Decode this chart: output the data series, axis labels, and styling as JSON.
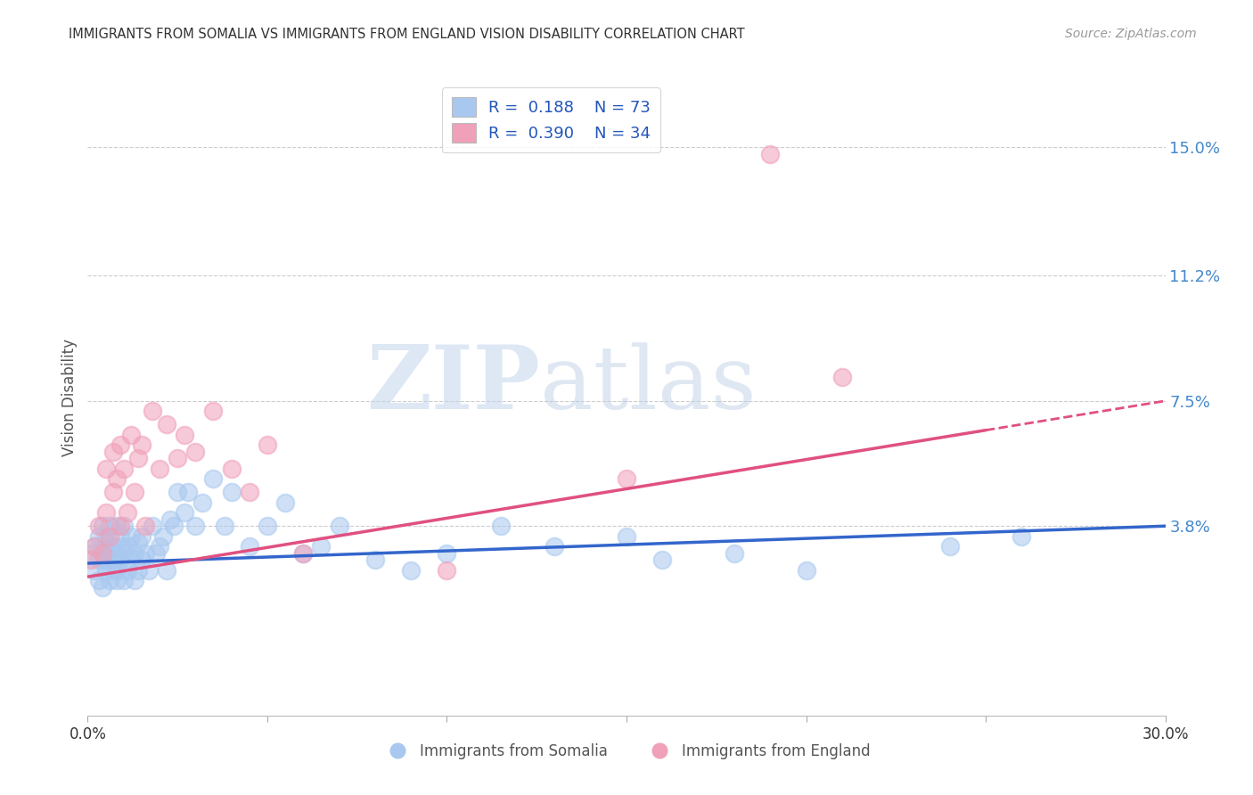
{
  "title": "IMMIGRANTS FROM SOMALIA VS IMMIGRANTS FROM ENGLAND VISION DISABILITY CORRELATION CHART",
  "source": "Source: ZipAtlas.com",
  "ylabel": "Vision Disability",
  "xlim": [
    0.0,
    0.3
  ],
  "ylim": [
    -0.018,
    0.17
  ],
  "yticks": [
    0.038,
    0.075,
    0.112,
    0.15
  ],
  "ytick_labels": [
    "3.8%",
    "7.5%",
    "11.2%",
    "15.0%"
  ],
  "xticks": [
    0.0,
    0.05,
    0.1,
    0.15,
    0.2,
    0.25,
    0.3
  ],
  "xtick_labels": [
    "0.0%",
    "",
    "",
    "",
    "",
    "",
    "30.0%"
  ],
  "background_color": "#ffffff",
  "watermark_text": "ZIP",
  "watermark_text2": "atlas",
  "legend_r1": "R =  0.188",
  "legend_n1": "N = 73",
  "legend_r2": "R =  0.390",
  "legend_n2": "N = 34",
  "somalia_color": "#a8c8f0",
  "england_color": "#f0a0b8",
  "somalia_line_color": "#3366cc",
  "england_line_color": "#e05080",
  "somalia_line_start": 0.027,
  "somalia_line_end": 0.038,
  "england_line_start": 0.023,
  "england_line_end": 0.075,
  "somalia_x": [
    0.001,
    0.002,
    0.002,
    0.003,
    0.003,
    0.003,
    0.004,
    0.004,
    0.004,
    0.005,
    0.005,
    0.005,
    0.005,
    0.006,
    0.006,
    0.006,
    0.007,
    0.007,
    0.007,
    0.008,
    0.008,
    0.008,
    0.008,
    0.009,
    0.009,
    0.009,
    0.01,
    0.01,
    0.01,
    0.011,
    0.011,
    0.012,
    0.012,
    0.013,
    0.013,
    0.014,
    0.014,
    0.015,
    0.015,
    0.016,
    0.017,
    0.018,
    0.019,
    0.02,
    0.021,
    0.022,
    0.023,
    0.024,
    0.025,
    0.027,
    0.028,
    0.03,
    0.032,
    0.035,
    0.038,
    0.04,
    0.045,
    0.05,
    0.055,
    0.06,
    0.065,
    0.07,
    0.08,
    0.09,
    0.1,
    0.115,
    0.13,
    0.15,
    0.16,
    0.18,
    0.2,
    0.24,
    0.26
  ],
  "somalia_y": [
    0.03,
    0.025,
    0.032,
    0.028,
    0.022,
    0.035,
    0.02,
    0.03,
    0.038,
    0.025,
    0.033,
    0.028,
    0.035,
    0.022,
    0.03,
    0.038,
    0.025,
    0.032,
    0.028,
    0.022,
    0.03,
    0.038,
    0.025,
    0.032,
    0.028,
    0.035,
    0.022,
    0.03,
    0.038,
    0.025,
    0.032,
    0.028,
    0.035,
    0.022,
    0.03,
    0.025,
    0.033,
    0.028,
    0.035,
    0.03,
    0.025,
    0.038,
    0.03,
    0.032,
    0.035,
    0.025,
    0.04,
    0.038,
    0.048,
    0.042,
    0.048,
    0.038,
    0.045,
    0.052,
    0.038,
    0.048,
    0.032,
    0.038,
    0.045,
    0.03,
    0.032,
    0.038,
    0.028,
    0.025,
    0.03,
    0.038,
    0.032,
    0.035,
    0.028,
    0.03,
    0.025,
    0.032,
    0.035
  ],
  "england_x": [
    0.001,
    0.002,
    0.003,
    0.004,
    0.005,
    0.005,
    0.006,
    0.007,
    0.007,
    0.008,
    0.009,
    0.009,
    0.01,
    0.011,
    0.012,
    0.013,
    0.014,
    0.015,
    0.016,
    0.018,
    0.02,
    0.022,
    0.025,
    0.027,
    0.03,
    0.035,
    0.04,
    0.045,
    0.05,
    0.06,
    0.1,
    0.15,
    0.19,
    0.21
  ],
  "england_y": [
    0.028,
    0.032,
    0.038,
    0.03,
    0.055,
    0.042,
    0.035,
    0.06,
    0.048,
    0.052,
    0.038,
    0.062,
    0.055,
    0.042,
    0.065,
    0.048,
    0.058,
    0.062,
    0.038,
    0.072,
    0.055,
    0.068,
    0.058,
    0.065,
    0.06,
    0.072,
    0.055,
    0.048,
    0.062,
    0.03,
    0.025,
    0.052,
    0.148,
    0.082
  ]
}
